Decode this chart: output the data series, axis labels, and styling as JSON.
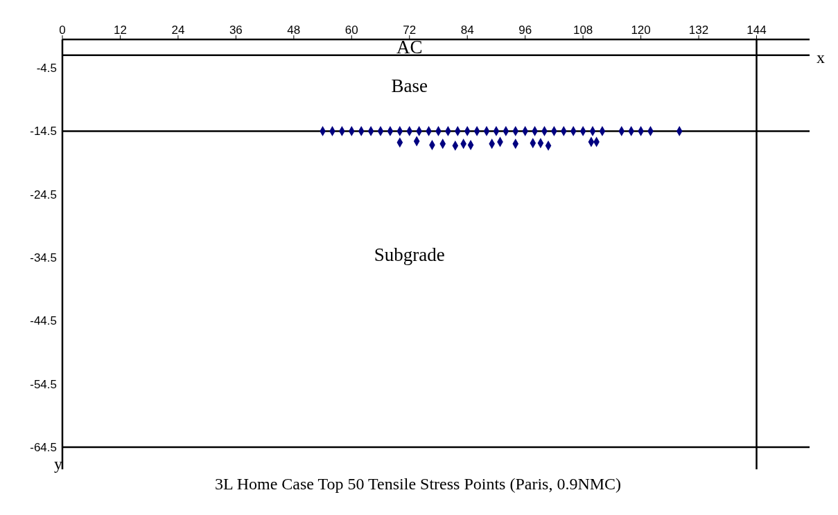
{
  "chart_data": {
    "type": "scatter",
    "title": "3L Home Case Top 50 Tensile Stress Points (Paris, 0.9NMC)",
    "xlabel": "x",
    "ylabel": "y",
    "xlim": [
      0,
      155
    ],
    "ylim": [
      -68,
      0
    ],
    "xticks": [
      0,
      12,
      24,
      36,
      48,
      60,
      72,
      84,
      96,
      108,
      120,
      132,
      144
    ],
    "yticks": [
      -4.5,
      -14.5,
      -24.5,
      -34.5,
      -44.5,
      -54.5,
      -64.5
    ],
    "grid": false,
    "marker": "diamond",
    "annotations": [
      "AC",
      "Base",
      "Subgrade"
    ],
    "ref_lines": [
      {
        "axis": "y",
        "value": -2.5,
        "color": "#000000"
      },
      {
        "axis": "y",
        "value": -14.5,
        "color": "#000000"
      },
      {
        "axis": "y",
        "value": -64.5,
        "color": "#000000"
      },
      {
        "axis": "x",
        "value": 144,
        "color": "#000000"
      }
    ],
    "series": [
      {
        "color": "#000080",
        "x": [
          54,
          56,
          58,
          60,
          62,
          64,
          66,
          68,
          70,
          72,
          74,
          76,
          78,
          80,
          82,
          84,
          86,
          88,
          90,
          92,
          94,
          96,
          98,
          100,
          102,
          104,
          106,
          108,
          110,
          112,
          116,
          118,
          120,
          122,
          128,
          70,
          73.5,
          76.7,
          78.9,
          81.5,
          83.2,
          84.7,
          89.1,
          90.8,
          94,
          97.6,
          99.2,
          100.8,
          109.7,
          110.8
        ],
        "values": [
          -14.5,
          -14.5,
          -14.5,
          -14.5,
          -14.5,
          -14.5,
          -14.5,
          -14.5,
          -14.5,
          -14.5,
          -14.5,
          -14.5,
          -14.5,
          -14.5,
          -14.5,
          -14.5,
          -14.5,
          -14.5,
          -14.5,
          -14.5,
          -14.5,
          -14.5,
          -14.5,
          -14.5,
          -14.5,
          -14.5,
          -14.5,
          -14.5,
          -14.5,
          -14.5,
          -14.5,
          -14.5,
          -14.5,
          -14.5,
          -14.5,
          -16.3,
          -16.1,
          -16.7,
          -16.5,
          -16.8,
          -16.5,
          -16.7,
          -16.5,
          -16.2,
          -16.5,
          -16.4,
          -16.4,
          -16.8,
          -16.2,
          -16.2
        ]
      }
    ]
  }
}
